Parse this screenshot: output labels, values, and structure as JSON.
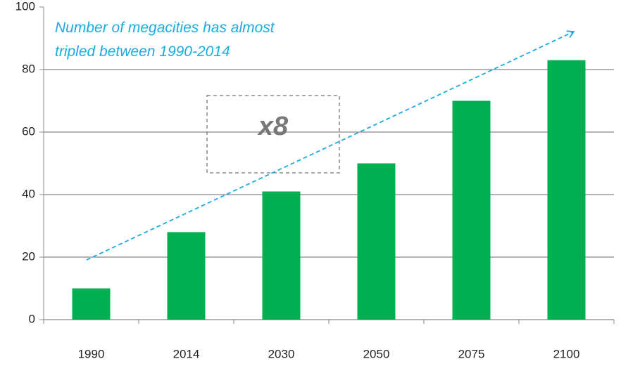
{
  "chart_data": {
    "type": "bar",
    "categories": [
      "1990",
      "2014",
      "2030",
      "2050",
      "2075",
      "2100"
    ],
    "values": [
      10,
      28,
      41,
      50,
      70,
      83
    ],
    "color": "#00b050",
    "ylim": [
      0,
      100
    ],
    "yticks": [
      0,
      20,
      40,
      60,
      80,
      100
    ],
    "grid": true,
    "annotation": [
      "Number of megacities has almost",
      "tripled between 1990-2014"
    ],
    "box_label": "x8"
  }
}
